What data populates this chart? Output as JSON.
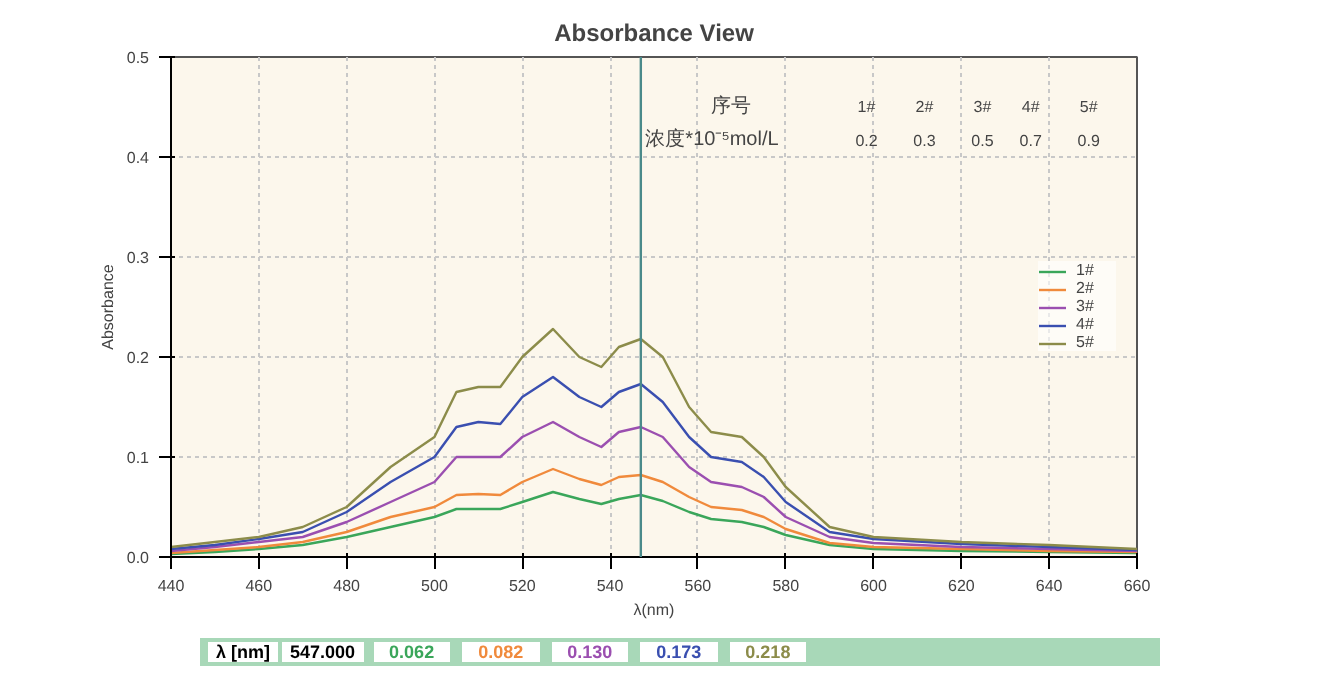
{
  "chart_data": {
    "type": "line",
    "title": "Absorbance View",
    "xlabel": "λ(nm)",
    "ylabel": "Absorbance",
    "x": [
      440,
      450,
      460,
      470,
      480,
      490,
      500,
      505,
      510,
      515,
      520,
      527,
      533,
      538,
      542,
      547,
      552,
      558,
      563,
      570,
      575,
      580,
      590,
      600,
      620,
      640,
      660
    ],
    "series": [
      {
        "name": "1#",
        "color": "#3aa65a",
        "values": [
          0.003,
          0.005,
          0.008,
          0.012,
          0.02,
          0.03,
          0.04,
          0.048,
          0.048,
          0.048,
          0.055,
          0.065,
          0.058,
          0.053,
          0.058,
          0.062,
          0.056,
          0.045,
          0.038,
          0.035,
          0.03,
          0.022,
          0.012,
          0.008,
          0.006,
          0.005,
          0.004
        ]
      },
      {
        "name": "2#",
        "color": "#f08a3c",
        "values": [
          0.004,
          0.007,
          0.01,
          0.015,
          0.025,
          0.04,
          0.05,
          0.062,
          0.063,
          0.062,
          0.075,
          0.088,
          0.078,
          0.072,
          0.08,
          0.082,
          0.075,
          0.06,
          0.05,
          0.047,
          0.04,
          0.028,
          0.014,
          0.01,
          0.008,
          0.006,
          0.005
        ]
      },
      {
        "name": "3#",
        "color": "#9b4fb0",
        "values": [
          0.006,
          0.01,
          0.015,
          0.02,
          0.035,
          0.055,
          0.075,
          0.1,
          0.1,
          0.1,
          0.12,
          0.135,
          0.12,
          0.11,
          0.125,
          0.13,
          0.12,
          0.09,
          0.075,
          0.07,
          0.06,
          0.04,
          0.02,
          0.014,
          0.01,
          0.008,
          0.006
        ]
      },
      {
        "name": "4#",
        "color": "#3a4fb0",
        "values": [
          0.008,
          0.012,
          0.018,
          0.025,
          0.045,
          0.075,
          0.1,
          0.13,
          0.135,
          0.133,
          0.16,
          0.18,
          0.16,
          0.15,
          0.165,
          0.173,
          0.155,
          0.12,
          0.1,
          0.095,
          0.08,
          0.055,
          0.025,
          0.018,
          0.013,
          0.01,
          0.007
        ]
      },
      {
        "name": "5#",
        "color": "#8c8c4a",
        "values": [
          0.01,
          0.015,
          0.02,
          0.03,
          0.05,
          0.09,
          0.12,
          0.165,
          0.17,
          0.17,
          0.2,
          0.228,
          0.2,
          0.19,
          0.21,
          0.218,
          0.2,
          0.15,
          0.125,
          0.12,
          0.1,
          0.07,
          0.03,
          0.02,
          0.015,
          0.012,
          0.008
        ]
      }
    ],
    "xlim": [
      440,
      660
    ],
    "xticks": [
      440,
      460,
      480,
      500,
      520,
      540,
      560,
      580,
      600,
      620,
      640,
      660
    ],
    "ylim": [
      0,
      0.5
    ],
    "yticks": [
      {
        "value": 0,
        "label": "0.0"
      },
      0.1,
      0.2,
      0.3,
      0.4,
      0.5
    ],
    "ref_lines": [
      {
        "axis": "x",
        "value": 547,
        "color": "#4a8a8a"
      }
    ],
    "grid": true,
    "legend": "right",
    "line_style": "solid",
    "annotations": [
      "序号",
      "1#",
      "2#",
      "3#",
      "4#",
      "5#",
      "浓度*10⁻⁵mol/L",
      "0.2",
      "0.3",
      "0.5",
      "0.7",
      "0.9",
      "λ [nm]",
      "547.000",
      "0.062",
      "0.082",
      "0.130",
      "0.173",
      "0.218"
    ]
  }
}
